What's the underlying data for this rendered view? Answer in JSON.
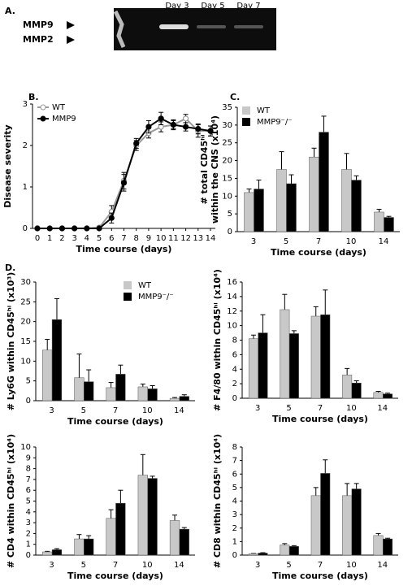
{
  "panel_labels": [
    "A.",
    "B.",
    "C.",
    "D."
  ],
  "gel": {
    "bands": [
      "MMP9",
      "MMP2"
    ],
    "lanes": [
      "Day 3",
      "Day 5",
      "Day 7"
    ]
  },
  "chart_data": [
    {
      "type": "line",
      "ylabel": "Disease severity",
      "xlabel": "Time course (days)",
      "x": [
        0,
        1,
        2,
        3,
        4,
        5,
        6,
        7,
        8,
        9,
        10,
        11,
        12,
        13,
        14
      ],
      "xlim": [
        0,
        14
      ],
      "xticks": [
        0,
        1,
        2,
        3,
        4,
        5,
        6,
        7,
        8,
        9,
        10,
        11,
        12,
        13,
        14
      ],
      "ylim": [
        0,
        3
      ],
      "yticks": [
        0,
        1,
        2,
        3
      ],
      "legend": "top-left",
      "series": [
        {
          "name": "WT",
          "color": "#999999",
          "marker": "open",
          "values": [
            0,
            0,
            0,
            0,
            0,
            0.02,
            0.4,
            1.15,
            2.0,
            2.3,
            2.45,
            2.5,
            2.65,
            2.35,
            2.35
          ],
          "errors": [
            0,
            0,
            0,
            0,
            0,
            0.02,
            0.15,
            0.2,
            0.12,
            0.12,
            0.12,
            0.1,
            0.1,
            0.15,
            0.12
          ]
        },
        {
          "name": "MMP9",
          "color": "#000000",
          "marker": "filled",
          "values": [
            0,
            0,
            0,
            0,
            0,
            0,
            0.25,
            1.1,
            2.05,
            2.45,
            2.65,
            2.5,
            2.45,
            2.4,
            2.35
          ],
          "errors": [
            0,
            0,
            0,
            0,
            0,
            0,
            0.12,
            0.2,
            0.12,
            0.15,
            0.15,
            0.12,
            0.1,
            0.12,
            0.12
          ]
        }
      ]
    },
    {
      "type": "bar",
      "ylabel": [
        "# total CD45ʰⁱ",
        "within the CNS (x10⁴)"
      ],
      "xlabel": "Time course (days)",
      "categories": [
        "3",
        "5",
        "7",
        "10",
        "14"
      ],
      "ylim": [
        0,
        35
      ],
      "yticks": [
        0,
        5,
        10,
        15,
        20,
        25,
        30,
        35
      ],
      "legend": "top-left",
      "series": [
        {
          "name": "WT",
          "color": "#c8c8c8",
          "values": [
            11,
            17.5,
            21,
            17.5,
            5.5
          ],
          "errors": [
            1,
            5,
            2.5,
            4.5,
            0.8
          ]
        },
        {
          "name": "MMP9⁻/⁻",
          "color": "#000000",
          "values": [
            12,
            13.5,
            28,
            14.5,
            4
          ],
          "errors": [
            2.5,
            2.5,
            4.5,
            1.2,
            0.3
          ]
        }
      ]
    },
    {
      "type": "bar",
      "ylabel": "# Ly6G within CD45ʰⁱ (x10³)",
      "xlabel": "Time course (days)",
      "categories": [
        "3",
        "5",
        "7",
        "10",
        "14"
      ],
      "ylim": [
        0,
        30
      ],
      "yticks": [
        0,
        5,
        10,
        15,
        20,
        25,
        30
      ],
      "legend": "top-right",
      "series": [
        {
          "name": "WT",
          "color": "#c8c8c8",
          "values": [
            12.8,
            5.8,
            3.3,
            3.5,
            0.6
          ],
          "errors": [
            2.7,
            6,
            1.3,
            0.7,
            0.2
          ]
        },
        {
          "name": "MMP9⁻/⁻",
          "color": "#000000",
          "values": [
            20.5,
            4.8,
            6.7,
            3,
            1.1
          ],
          "errors": [
            5.3,
            3,
            2.3,
            0.8,
            0.4
          ]
        }
      ]
    },
    {
      "type": "bar",
      "ylabel": "# F4/80 within CD45ʰⁱ (x10⁴)",
      "xlabel": "Time course (days)",
      "categories": [
        "3",
        "5",
        "7",
        "10",
        "14"
      ],
      "ylim": [
        0,
        16
      ],
      "yticks": [
        0,
        2,
        4,
        6,
        8,
        10,
        12,
        14,
        16
      ],
      "series": [
        {
          "color": "#c8c8c8",
          "values": [
            8.2,
            12.2,
            11.3,
            3.2,
            0.8
          ],
          "errors": [
            0.5,
            2.1,
            1.3,
            0.9,
            0.15
          ]
        },
        {
          "color": "#000000",
          "values": [
            9,
            8.9,
            11.5,
            2.1,
            0.6
          ],
          "errors": [
            2.5,
            0.4,
            3.4,
            0.3,
            0.1
          ]
        }
      ]
    },
    {
      "type": "bar",
      "ylabel": "# CD4 within CD45ʰⁱ (x10⁴)",
      "xlabel": "Time course (days)",
      "categories": [
        "3",
        "5",
        "7",
        "10",
        "14"
      ],
      "ylim": [
        0,
        10
      ],
      "yticks": [
        0,
        1,
        2,
        3,
        4,
        5,
        6,
        7,
        8,
        9,
        10
      ],
      "series": [
        {
          "color": "#c8c8c8",
          "values": [
            0.3,
            1.5,
            3.4,
            7.4,
            3.2
          ],
          "errors": [
            0.05,
            0.4,
            0.8,
            1.9,
            0.5
          ]
        },
        {
          "color": "#000000",
          "values": [
            0.5,
            1.5,
            4.8,
            7.1,
            2.4
          ],
          "errors": [
            0.1,
            0.3,
            1.2,
            0.2,
            0.15
          ]
        }
      ]
    },
    {
      "type": "bar",
      "ylabel": "# CD8 within CD45ʰⁱ (x10⁴)",
      "xlabel": "Time course (days)",
      "categories": [
        "3",
        "5",
        "7",
        "10",
        "14"
      ],
      "ylim": [
        0,
        8
      ],
      "yticks": [
        0,
        1,
        2,
        3,
        4,
        5,
        6,
        7,
        8
      ],
      "series": [
        {
          "color": "#c8c8c8",
          "values": [
            0.1,
            0.75,
            4.4,
            4.4,
            1.45
          ],
          "errors": [
            0.02,
            0.1,
            0.6,
            0.9,
            0.15
          ]
        },
        {
          "color": "#000000",
          "values": [
            0.15,
            0.65,
            6.05,
            4.9,
            1.2
          ],
          "errors": [
            0.03,
            0.05,
            1,
            0.4,
            0.05
          ]
        }
      ]
    }
  ]
}
